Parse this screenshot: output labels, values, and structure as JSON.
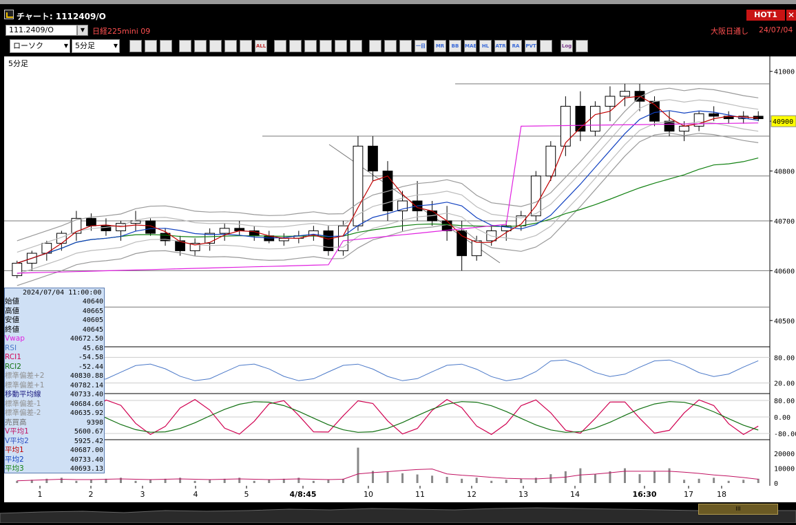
{
  "window": {
    "title": "チャート: 1112409/O",
    "hot_label": "HOT1",
    "close_glyph": "✕"
  },
  "symbol_bar": {
    "symbol": "111.2409/O",
    "name": "日経225mini 09",
    "exchange": "大阪日通し",
    "date": "24/07/04"
  },
  "toolbar": {
    "chart_type": "ローソク",
    "period": "5分足",
    "buttons": [
      "magnifier-icon",
      "crosshair-icon",
      "download-icon",
      "indicator-icon",
      "compare-icon",
      "disabled-icon",
      "trend-icon",
      "cross-icon",
      "all-icon",
      "pen-icon",
      "line-icon",
      "fib-icon",
      "arrow-icon",
      "note-icon",
      "trash-icon",
      "settings-icon",
      "tool-icon",
      "color-icon",
      "ichi-icon",
      "mr-icon",
      "bb-icon",
      "mae-icon",
      "hl-icon",
      "atr-icon",
      "paracut-icon",
      "pvt-icon",
      "window-icon",
      "log-icon",
      "exit-icon"
    ],
    "button_text": [
      "",
      "",
      "",
      "",
      "",
      "",
      "",
      "",
      "ALL",
      "",
      "",
      "",
      "",
      "",
      "",
      "",
      "",
      "",
      "一目",
      "MR",
      "BB",
      "MAE",
      "HL",
      "ATR",
      "RA",
      "PVT",
      "",
      "Log",
      ""
    ]
  },
  "chart_label": "5分足",
  "price_axis": {
    "ticks": [
      "41000",
      "40900",
      "40800",
      "40700",
      "40600",
      "40500"
    ],
    "current": "40900"
  },
  "rsi_axis": [
    "80.00",
    "20.00"
  ],
  "rci_axis": [
    "80.00",
    "0.00",
    "-80.00"
  ],
  "vol_axis": [
    "20000",
    "10000",
    "0"
  ],
  "x_axis": {
    "labels": [
      "1",
      "2",
      "3",
      "4",
      "5",
      "4/8:45",
      "10",
      "11",
      "12",
      "13",
      "14",
      "16:30",
      "17",
      "18"
    ]
  },
  "info": {
    "timestamp": "2024/07/04  11:00:00",
    "rows": [
      {
        "label": "始値",
        "value": "40640",
        "color": "#000"
      },
      {
        "label": "高値",
        "value": "40665",
        "color": "#000"
      },
      {
        "label": "安値",
        "value": "40605",
        "color": "#000"
      },
      {
        "label": "終値",
        "value": "40645",
        "color": "#000"
      },
      {
        "label": "Vwap",
        "value": "40672.50",
        "color": "#e020e0"
      },
      {
        "label": "RSI",
        "value": "45.68",
        "color": "#4a78c8"
      },
      {
        "label": "RCI1",
        "value": "-54.58",
        "color": "#d00050"
      },
      {
        "label": "RCI2",
        "value": "-52.44",
        "color": "#107010"
      },
      {
        "label": "標準偏差+2",
        "value": "40830.88",
        "color": "#909090"
      },
      {
        "label": "標準偏差+1",
        "value": "40782.14",
        "color": "#909090"
      },
      {
        "label": "移動平均線",
        "value": "40733.40",
        "color": "#1a1a80"
      },
      {
        "label": "標準偏差-1",
        "value": "40684.66",
        "color": "#909090"
      },
      {
        "label": "標準偏差-2",
        "value": "40635.92",
        "color": "#909090"
      },
      {
        "label": "売買高",
        "value": "9398",
        "color": "#707070"
      },
      {
        "label": "V平均1",
        "value": "5600.67",
        "color": "#c01060"
      },
      {
        "label": "V平均2",
        "value": "5925.42",
        "color": "#3050c0"
      },
      {
        "label": "平均1",
        "value": "40687.00",
        "color": "#c00000"
      },
      {
        "label": "平均2",
        "value": "40733.40",
        "color": "#1040c0"
      },
      {
        "label": "平均3",
        "value": "40693.13",
        "color": "#108010"
      }
    ]
  },
  "chart_data": {
    "type": "candlestick",
    "price_ylim": [
      40450,
      41030
    ],
    "ohlc_approx": [
      [
        40590,
        40620,
        40585,
        40615
      ],
      [
        40615,
        40640,
        40600,
        40635
      ],
      [
        40635,
        40660,
        40620,
        40655
      ],
      [
        40655,
        40680,
        40640,
        40675
      ],
      [
        40675,
        40720,
        40660,
        40705
      ],
      [
        40705,
        40715,
        40680,
        40690
      ],
      [
        40690,
        40705,
        40670,
        40680
      ],
      [
        40680,
        40700,
        40660,
        40695
      ],
      [
        40695,
        40720,
        40680,
        40700
      ],
      [
        40700,
        40705,
        40670,
        40675
      ],
      [
        40675,
        40685,
        40650,
        40660
      ],
      [
        40660,
        40670,
        40630,
        40640
      ],
      [
        40640,
        40665,
        40630,
        40655
      ],
      [
        40655,
        40685,
        40640,
        40675
      ],
      [
        40675,
        40695,
        40660,
        40685
      ],
      [
        40685,
        40700,
        40670,
        40680
      ],
      [
        40680,
        40690,
        40660,
        40670
      ],
      [
        40670,
        40680,
        40655,
        40660
      ],
      [
        40660,
        40675,
        40650,
        40665
      ],
      [
        40665,
        40680,
        40655,
        40670
      ],
      [
        40670,
        40690,
        40660,
        40680
      ],
      [
        40680,
        40690,
        40630,
        40640
      ],
      [
        40640,
        40700,
        40630,
        40690
      ],
      [
        40690,
        40870,
        40680,
        40850
      ],
      [
        40850,
        40870,
        40780,
        40800
      ],
      [
        40800,
        40820,
        40700,
        40720
      ],
      [
        40720,
        40760,
        40680,
        40740
      ],
      [
        40740,
        40780,
        40700,
        40720
      ],
      [
        40720,
        40740,
        40690,
        40700
      ],
      [
        40700,
        40730,
        40660,
        40680
      ],
      [
        40680,
        40700,
        40600,
        40630
      ],
      [
        40630,
        40670,
        40620,
        40660
      ],
      [
        40660,
        40690,
        40650,
        40680
      ],
      [
        40680,
        40700,
        40660,
        40690
      ],
      [
        40690,
        40720,
        40680,
        40710
      ],
      [
        40710,
        40800,
        40700,
        40790
      ],
      [
        40790,
        40860,
        40780,
        40850
      ],
      [
        40850,
        40950,
        40830,
        40930
      ],
      [
        40930,
        40960,
        40860,
        40880
      ],
      [
        40880,
        40940,
        40870,
        40930
      ],
      [
        40930,
        40970,
        40900,
        40950
      ],
      [
        40950,
        40975,
        40930,
        40960
      ],
      [
        40960,
        40975,
        40920,
        40940
      ],
      [
        40940,
        40950,
        40890,
        40900
      ],
      [
        40900,
        40920,
        40870,
        40880
      ],
      [
        40880,
        40900,
        40860,
        40890
      ],
      [
        40890,
        40920,
        40880,
        40915
      ],
      [
        40915,
        40930,
        40900,
        40910
      ],
      [
        40910,
        40920,
        40895,
        40905
      ],
      [
        40905,
        40920,
        40895,
        40910
      ],
      [
        40910,
        40920,
        40900,
        40905
      ]
    ],
    "volume_ylim": [
      0,
      28000
    ]
  }
}
